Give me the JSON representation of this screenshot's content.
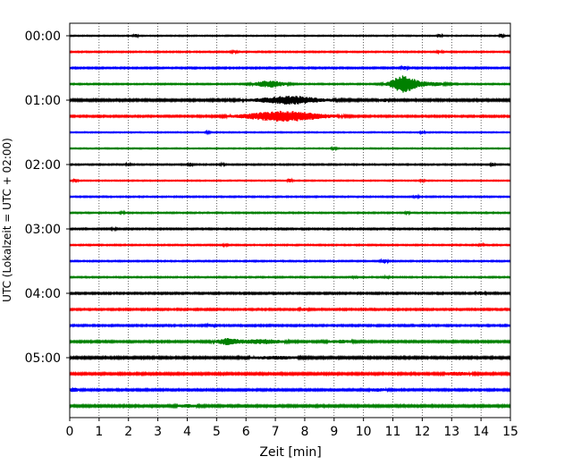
{
  "chart_data": {
    "type": "line",
    "title": "",
    "xlabel": "Zeit  [min]",
    "ylabel": "UTC (Lokalzeit = UTC + 02:00)",
    "xlim": [
      0,
      15
    ],
    "x_ticks": [
      0,
      1,
      2,
      3,
      4,
      5,
      6,
      7,
      8,
      9,
      10,
      11,
      12,
      13,
      14,
      15
    ],
    "y_tick_labels": [
      "00:00",
      "01:00",
      "02:00",
      "03:00",
      "04:00",
      "05:00"
    ],
    "y_tick_hours": [
      0,
      1,
      2,
      3,
      4,
      5
    ],
    "vertical_grid": true,
    "line_colors": [
      "#000000",
      "#ff0000",
      "#0000ff",
      "#008000"
    ],
    "traces": [
      {
        "start": "00:00",
        "color": "#000000",
        "noise": 0.5,
        "events": [
          {
            "t": 2.25,
            "a": 1.8,
            "w": 0.05
          },
          {
            "t": 12.6,
            "a": 1.6,
            "w": 0.05
          },
          {
            "t": 14.7,
            "a": 2.0,
            "w": 0.05
          }
        ]
      },
      {
        "start": "00:15",
        "color": "#ff0000",
        "noise": 0.6,
        "events": [
          {
            "t": 5.6,
            "a": 1.2,
            "w": 0.06
          },
          {
            "t": 12.6,
            "a": 1.2,
            "w": 0.06
          }
        ]
      },
      {
        "start": "00:30",
        "color": "#0000ff",
        "noise": 0.7,
        "events": [
          {
            "t": 11.4,
            "a": 1.5,
            "w": 0.08
          }
        ]
      },
      {
        "start": "00:45",
        "color": "#008000",
        "noise": 0.6,
        "events": [
          {
            "t": 6.8,
            "a": 3.5,
            "w": 0.35
          },
          {
            "t": 11.35,
            "a": 9.0,
            "w": 0.3
          },
          {
            "t": 12.2,
            "a": 2.0,
            "w": 0.4
          }
        ]
      },
      {
        "start": "01:00",
        "color": "#000000",
        "noise": 1.0,
        "events": [
          {
            "t": 7.5,
            "a": 4.0,
            "w": 0.7
          },
          {
            "t": 10.7,
            "a": 1.2,
            "w": 0.1
          }
        ]
      },
      {
        "start": "01:15",
        "color": "#ff0000",
        "noise": 0.8,
        "events": [
          {
            "t": 7.3,
            "a": 5.5,
            "w": 0.9
          }
        ]
      },
      {
        "start": "01:30",
        "color": "#0000ff",
        "noise": 0.5,
        "events": [
          {
            "t": 4.7,
            "a": 1.0,
            "w": 0.05
          },
          {
            "t": 12.0,
            "a": 1.2,
            "w": 0.05
          }
        ]
      },
      {
        "start": "01:45",
        "color": "#008000",
        "noise": 0.5,
        "events": [
          {
            "t": 9.0,
            "a": 1.5,
            "w": 0.05
          }
        ]
      },
      {
        "start": "02:00",
        "color": "#000000",
        "noise": 0.6,
        "events": [
          {
            "t": 2.0,
            "a": 1.5,
            "w": 0.05
          },
          {
            "t": 4.1,
            "a": 1.8,
            "w": 0.05
          },
          {
            "t": 5.2,
            "a": 1.0,
            "w": 0.05
          },
          {
            "t": 14.4,
            "a": 1.4,
            "w": 0.05
          }
        ]
      },
      {
        "start": "02:15",
        "color": "#ff0000",
        "noise": 0.5,
        "events": [
          {
            "t": 0.2,
            "a": 2.0,
            "w": 0.05
          },
          {
            "t": 7.5,
            "a": 1.6,
            "w": 0.05
          },
          {
            "t": 12.0,
            "a": 1.2,
            "w": 0.05
          }
        ]
      },
      {
        "start": "02:30",
        "color": "#0000ff",
        "noise": 0.6,
        "events": [
          {
            "t": 11.8,
            "a": 1.2,
            "w": 0.06
          }
        ]
      },
      {
        "start": "02:45",
        "color": "#008000",
        "noise": 0.6,
        "events": [
          {
            "t": 1.8,
            "a": 1.0,
            "w": 0.05
          },
          {
            "t": 11.5,
            "a": 1.2,
            "w": 0.05
          }
        ]
      },
      {
        "start": "03:00",
        "color": "#000000",
        "noise": 0.7,
        "events": [
          {
            "t": 1.5,
            "a": 1.2,
            "w": 0.05
          }
        ]
      },
      {
        "start": "03:15",
        "color": "#ff0000",
        "noise": 0.6,
        "events": [
          {
            "t": 5.3,
            "a": 1.3,
            "w": 0.05
          },
          {
            "t": 14.0,
            "a": 1.3,
            "w": 0.05
          }
        ]
      },
      {
        "start": "03:30",
        "color": "#0000ff",
        "noise": 0.6,
        "events": [
          {
            "t": 10.7,
            "a": 2.2,
            "w": 0.08
          }
        ]
      },
      {
        "start": "03:45",
        "color": "#008000",
        "noise": 0.6,
        "events": [
          {
            "t": 9.7,
            "a": 1.2,
            "w": 0.05
          },
          {
            "t": 10.8,
            "a": 1.2,
            "w": 0.05
          }
        ]
      },
      {
        "start": "04:00",
        "color": "#000000",
        "noise": 0.8,
        "events": [
          {
            "t": 14.0,
            "a": 1.5,
            "w": 0.1
          }
        ]
      },
      {
        "start": "04:15",
        "color": "#ff0000",
        "noise": 0.8,
        "events": [
          {
            "t": 8.0,
            "a": 1.2,
            "w": 0.1
          }
        ]
      },
      {
        "start": "04:30",
        "color": "#0000ff",
        "noise": 0.8,
        "events": [
          {
            "t": 4.8,
            "a": 1.4,
            "w": 0.08
          }
        ]
      },
      {
        "start": "04:45",
        "color": "#008000",
        "noise": 0.9,
        "events": [
          {
            "t": 5.4,
            "a": 3.2,
            "w": 0.25
          },
          {
            "t": 6.5,
            "a": 2.0,
            "w": 0.5
          },
          {
            "t": 9.2,
            "a": 1.2,
            "w": 0.3
          }
        ]
      },
      {
        "start": "05:00",
        "color": "#000000",
        "noise": 1.0,
        "events": [
          {
            "t": 7.0,
            "a": 1.2,
            "w": 0.5
          }
        ]
      },
      {
        "start": "05:15",
        "color": "#ff0000",
        "noise": 1.0,
        "events": [
          {
            "t": 13.2,
            "a": 1.3,
            "w": 0.3
          }
        ]
      },
      {
        "start": "05:30",
        "color": "#0000ff",
        "noise": 0.9,
        "events": [
          {
            "t": 0.15,
            "a": 2.2,
            "w": 0.1
          },
          {
            "t": 10.5,
            "a": 1.3,
            "w": 0.2
          }
        ]
      },
      {
        "start": "05:45",
        "color": "#008000",
        "noise": 1.0,
        "events": [
          {
            "t": 4.0,
            "a": 1.2,
            "w": 0.2
          }
        ]
      }
    ]
  }
}
